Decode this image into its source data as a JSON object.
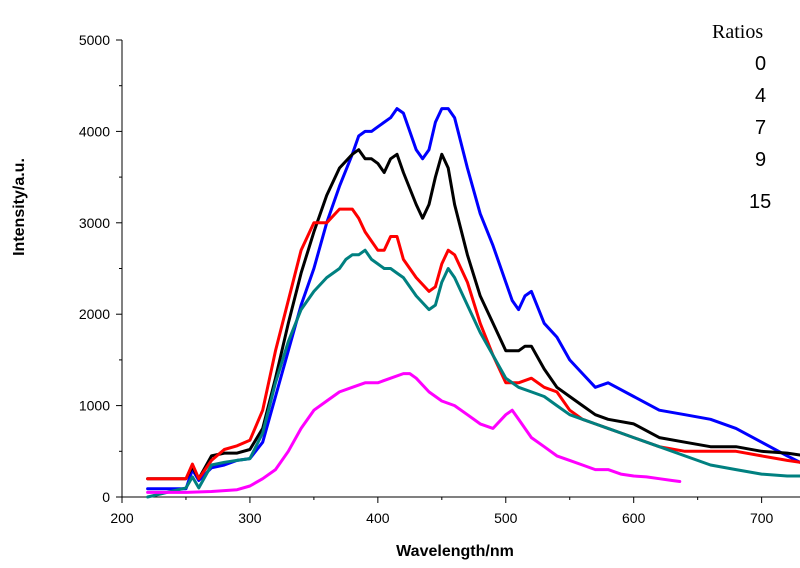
{
  "chart_data": {
    "type": "line",
    "xlabel": "Wavelength/nm",
    "ylabel": "Intensity/a.u.",
    "xlim": [
      220,
      730
    ],
    "ylim": [
      0,
      5000
    ],
    "x_ticks": [
      200,
      300,
      400,
      500,
      600,
      700
    ],
    "y_ticks": [
      0,
      1000,
      2000,
      3000,
      4000,
      5000
    ],
    "grid": false,
    "legend": {
      "title": "Ratios",
      "position": "top-right",
      "entries": [
        "0",
        "4",
        "7",
        "9",
        "15"
      ]
    },
    "series": [
      {
        "color": "#0000ff",
        "x": [
          220,
          250,
          255,
          260,
          270,
          280,
          290,
          300,
          310,
          320,
          330,
          340,
          350,
          360,
          370,
          380,
          385,
          390,
          395,
          400,
          410,
          415,
          420,
          430,
          435,
          440,
          445,
          450,
          455,
          460,
          470,
          480,
          490,
          500,
          505,
          510,
          515,
          520,
          530,
          540,
          550,
          560,
          570,
          580,
          600,
          620,
          640,
          660,
          680,
          700,
          720,
          730
        ],
        "y": [
          90,
          90,
          300,
          180,
          320,
          350,
          400,
          420,
          600,
          1100,
          1600,
          2100,
          2500,
          3000,
          3400,
          3750,
          3950,
          4000,
          4000,
          4050,
          4150,
          4250,
          4200,
          3800,
          3700,
          3800,
          4100,
          4250,
          4250,
          4150,
          3600,
          3100,
          2750,
          2350,
          2150,
          2050,
          2200,
          2250,
          1900,
          1750,
          1500,
          1350,
          1200,
          1250,
          1100,
          950,
          900,
          850,
          750,
          600,
          450,
          380
        ]
      },
      {
        "color": "#000000",
        "x": [
          220,
          250,
          255,
          260,
          270,
          280,
          290,
          300,
          310,
          320,
          330,
          340,
          350,
          360,
          370,
          380,
          385,
          390,
          395,
          400,
          405,
          410,
          415,
          420,
          430,
          435,
          440,
          445,
          450,
          455,
          460,
          470,
          480,
          490,
          500,
          510,
          515,
          520,
          530,
          540,
          550,
          560,
          570,
          580,
          600,
          620,
          640,
          660,
          680,
          700,
          720,
          730
        ],
        "y": [
          200,
          200,
          330,
          200,
          450,
          480,
          480,
          520,
          750,
          1300,
          1900,
          2450,
          2900,
          3300,
          3600,
          3750,
          3800,
          3700,
          3700,
          3650,
          3550,
          3700,
          3750,
          3550,
          3200,
          3050,
          3200,
          3500,
          3750,
          3600,
          3200,
          2650,
          2200,
          1900,
          1600,
          1600,
          1650,
          1650,
          1400,
          1200,
          1100,
          1000,
          900,
          850,
          800,
          650,
          600,
          550,
          550,
          500,
          480,
          460
        ]
      },
      {
        "color": "#ff0000",
        "x": [
          220,
          250,
          255,
          260,
          270,
          280,
          290,
          300,
          310,
          320,
          330,
          340,
          350,
          360,
          370,
          375,
          380,
          385,
          390,
          395,
          400,
          405,
          410,
          415,
          420,
          430,
          440,
          445,
          450,
          455,
          460,
          470,
          480,
          490,
          500,
          510,
          520,
          530,
          540,
          550,
          560,
          570,
          580,
          590,
          600,
          620,
          640,
          660,
          680,
          700,
          720,
          730
        ],
        "y": [
          200,
          200,
          360,
          200,
          400,
          520,
          560,
          620,
          950,
          1600,
          2150,
          2700,
          3000,
          3000,
          3150,
          3150,
          3150,
          3050,
          2900,
          2800,
          2700,
          2700,
          2850,
          2850,
          2600,
          2400,
          2250,
          2300,
          2550,
          2700,
          2650,
          2350,
          1900,
          1550,
          1250,
          1250,
          1300,
          1200,
          1150,
          950,
          850,
          800,
          750,
          700,
          650,
          550,
          500,
          500,
          500,
          450,
          400,
          380
        ]
      },
      {
        "color": "#008080",
        "x": [
          220,
          250,
          255,
          260,
          270,
          280,
          290,
          300,
          310,
          320,
          330,
          340,
          350,
          360,
          370,
          375,
          380,
          385,
          390,
          395,
          400,
          405,
          410,
          415,
          420,
          430,
          440,
          445,
          450,
          455,
          460,
          470,
          480,
          490,
          500,
          510,
          520,
          530,
          540,
          550,
          560,
          570,
          580,
          590,
          600,
          620,
          640,
          660,
          680,
          700,
          720,
          730
        ],
        "y": [
          0,
          100,
          220,
          100,
          350,
          380,
          400,
          420,
          700,
          1250,
          1700,
          2050,
          2250,
          2400,
          2500,
          2600,
          2650,
          2650,
          2700,
          2600,
          2550,
          2500,
          2500,
          2450,
          2400,
          2200,
          2050,
          2100,
          2350,
          2500,
          2400,
          2100,
          1800,
          1550,
          1300,
          1200,
          1150,
          1100,
          1000,
          900,
          850,
          800,
          750,
          700,
          650,
          550,
          450,
          350,
          300,
          250,
          230,
          230
        ]
      },
      {
        "color": "#ff00ff",
        "x": [
          220,
          250,
          270,
          290,
          300,
          310,
          320,
          330,
          340,
          350,
          360,
          370,
          380,
          390,
          400,
          410,
          420,
          425,
          430,
          440,
          450,
          460,
          470,
          480,
          490,
          500,
          505,
          510,
          520,
          530,
          540,
          550,
          560,
          570,
          580,
          590,
          600,
          610,
          620,
          630,
          636
        ],
        "y": [
          50,
          50,
          60,
          80,
          120,
          200,
          300,
          500,
          750,
          950,
          1050,
          1150,
          1200,
          1250,
          1250,
          1300,
          1350,
          1350,
          1300,
          1150,
          1050,
          1000,
          900,
          800,
          750,
          900,
          950,
          850,
          650,
          550,
          450,
          400,
          350,
          300,
          300,
          250,
          230,
          220,
          200,
          180,
          170
        ]
      }
    ]
  }
}
